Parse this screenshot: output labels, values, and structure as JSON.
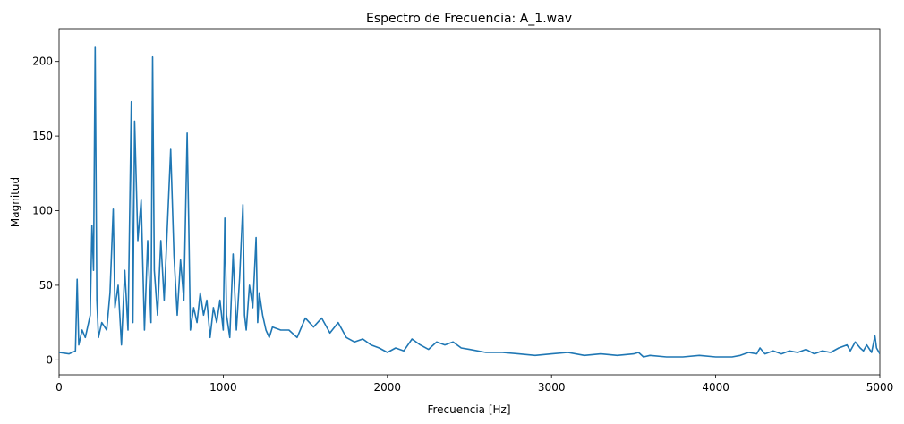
{
  "chart_data": {
    "type": "line",
    "title": "Espectro de Frecuencia: A_1.wav",
    "xlabel": "Frecuencia [Hz]",
    "ylabel": "Magnitud",
    "xlim": [
      0,
      5000
    ],
    "ylim": [
      -10,
      222
    ],
    "xticks": [
      0,
      1000,
      2000,
      3000,
      4000,
      5000
    ],
    "yticks": [
      0,
      50,
      100,
      150,
      200
    ],
    "grid": false,
    "line_color": "#1f77b4",
    "series": [
      {
        "x": [
          0,
          60,
          100,
          110,
          120,
          140,
          160,
          190,
          200,
          210,
          220,
          230,
          240,
          260,
          290,
          310,
          330,
          340,
          360,
          380,
          400,
          420,
          440,
          450,
          460,
          480,
          500,
          520,
          540,
          560,
          570,
          580,
          600,
          620,
          640,
          660,
          680,
          700,
          720,
          740,
          760,
          780,
          790,
          800,
          820,
          840,
          860,
          880,
          900,
          920,
          940,
          960,
          980,
          1000,
          1010,
          1020,
          1040,
          1060,
          1080,
          1100,
          1120,
          1130,
          1140,
          1160,
          1180,
          1200,
          1210,
          1220,
          1240,
          1260,
          1280,
          1300,
          1350,
          1400,
          1450,
          1500,
          1550,
          1600,
          1650,
          1700,
          1750,
          1800,
          1850,
          1900,
          1950,
          2000,
          2050,
          2100,
          2150,
          2200,
          2250,
          2300,
          2350,
          2400,
          2450,
          2500,
          2600,
          2700,
          2800,
          2900,
          3000,
          3100,
          3200,
          3300,
          3400,
          3500,
          3530,
          3560,
          3600,
          3700,
          3800,
          3900,
          4000,
          4100,
          4150,
          4200,
          4250,
          4270,
          4300,
          4350,
          4400,
          4450,
          4500,
          4550,
          4600,
          4650,
          4700,
          4750,
          4800,
          4820,
          4850,
          4880,
          4900,
          4920,
          4950,
          4970,
          4980,
          5000
        ],
        "y": [
          5,
          4,
          6,
          54,
          10,
          20,
          15,
          30,
          90,
          60,
          210,
          40,
          15,
          25,
          20,
          45,
          101,
          35,
          50,
          10,
          60,
          20,
          173,
          25,
          160,
          80,
          107,
          20,
          80,
          25,
          203,
          60,
          30,
          80,
          40,
          90,
          141,
          70,
          30,
          67,
          40,
          152,
          90,
          20,
          35,
          25,
          45,
          30,
          40,
          15,
          35,
          25,
          40,
          20,
          95,
          30,
          15,
          71,
          20,
          55,
          104,
          30,
          20,
          50,
          35,
          82,
          25,
          45,
          30,
          20,
          15,
          22,
          20,
          20,
          15,
          28,
          22,
          28,
          18,
          25,
          15,
          12,
          14,
          10,
          8,
          5,
          8,
          6,
          14,
          10,
          7,
          12,
          10,
          12,
          8,
          7,
          5,
          5,
          4,
          3,
          4,
          5,
          3,
          4,
          3,
          4,
          5,
          2,
          3,
          2,
          2,
          3,
          2,
          2,
          3,
          5,
          4,
          8,
          4,
          6,
          4,
          6,
          5,
          7,
          4,
          6,
          5,
          8,
          10,
          6,
          12,
          8,
          6,
          10,
          5,
          16,
          8,
          4
        ]
      }
    ]
  }
}
